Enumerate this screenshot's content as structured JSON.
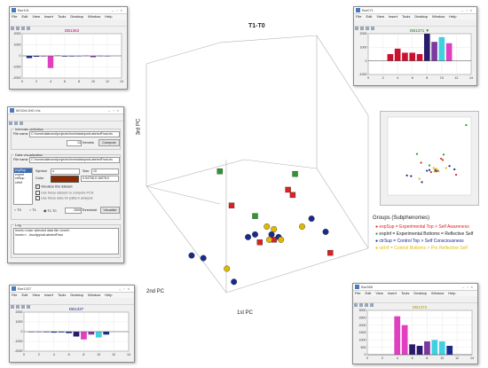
{
  "main_plot": {
    "title": "T1-T0",
    "axis_labels": {
      "z": "3rd PC",
      "y": "2nd PC",
      "x": "1st PC"
    }
  },
  "windows": {
    "top_left": {
      "title": "Bar101",
      "chart_title": "DB1363"
    },
    "top_right": {
      "title": "Bar071",
      "chart_title": "DB1371 ▼"
    },
    "bottom_left": {
      "title": "Bar1337",
      "chart_title": "DB1337"
    },
    "bottom_right": {
      "title": "Bar368",
      "chart_title": "DB1373"
    }
  },
  "menu": [
    "File",
    "Edit",
    "View",
    "Insert",
    "Tools",
    "Desktop",
    "Window",
    "Help"
  ],
  "modeling": {
    "title": "MODeLING.Vis",
    "intervals_panel": "Intervals definition",
    "file_label": "File name",
    "file_value": "C:\\home\\dalmond\\projects\\lmmhdata\\protLabeledFinal.xls",
    "kernels_value": "13",
    "kernels_label": "Kernels",
    "compute_label": "Compute",
    "dataviz_panel": "Data visualization",
    "list_items": [
      "expSup",
      "expInf",
      "ctrSup",
      "ctrInf"
    ],
    "symbol_label": "Symbol",
    "symbol_value": "o",
    "size_label": "Size",
    "size_value": "10",
    "color_label": "Color",
    "color_value": "0.54706,0.16078,0",
    "visualize_dataset": "Visualize this dataset",
    "use_pca": "Use these dataset to compute PCA",
    "use_pattern": "Use these data for pattern analysis",
    "radio_t0": "T0",
    "radio_t1": "T1",
    "radio_t1t0": "T1-T0",
    "threshold_value": "2500",
    "threshold_label": "Threshold",
    "visualize_btn": "Visualize",
    "log_panel": "Log",
    "log_lines": [
      "lmmh>>User selected data file:\\ lmmh\\",
      "lmmh>> ..\\bucfg\\protLabeledFinal"
    ],
    "colors": {
      "swatch": "#8b2900"
    }
  },
  "legend": {
    "title": "Groups (Subphenomes)",
    "items": [
      {
        "label": "expSup = Experimental Top > Self Awareness",
        "color": "#e02020"
      },
      {
        "label": "expInf = Experimental Bottoms = Reflective Self",
        "color": "#2a9a2a"
      },
      {
        "label": "ctrSup = Control Top > Self Consciousness",
        "color": "#1a2a8a"
      },
      {
        "label": "ctrInf = Control Bottoms > Pre Reflective Self",
        "color": "#e0b800"
      }
    ]
  },
  "chart_data": [
    {
      "type": "bar",
      "title": "DB1363",
      "x": [
        1,
        2,
        3,
        4,
        5,
        6,
        7,
        8,
        9,
        10,
        11,
        12
      ],
      "values": [
        -200,
        -80,
        -50,
        -1100,
        40,
        -60,
        -50,
        -40,
        20,
        -120,
        10,
        0
      ],
      "bar_colors": [
        "#1a2a8a",
        "#1a2a8a",
        "#7a3aa0",
        "#e040c0",
        "#7a3aa0",
        "#1a2a8a",
        "#1a2a8a",
        "#1a2a8a",
        "#7a3aa0",
        "#7a3aa0",
        "#1a2a8a",
        "#1a2a8a"
      ],
      "xlim": [
        0,
        14
      ],
      "xticks": [
        0,
        2,
        4,
        6,
        8,
        10,
        12,
        14
      ],
      "ylim": [
        -2000,
        2000
      ],
      "yticks": [
        -2000,
        -1000,
        0,
        1000,
        2000
      ]
    },
    {
      "type": "bar",
      "title": "DB1371",
      "x": [
        3,
        4,
        5,
        6,
        7,
        8,
        9,
        10,
        11
      ],
      "values": [
        500,
        900,
        600,
        600,
        500,
        2000,
        1400,
        1750,
        1300
      ],
      "bar_colors": [
        "#cc1030",
        "#cc1030",
        "#cc1030",
        "#cc1030",
        "#cc1030",
        "#2a1a6a",
        "#7a3aa0",
        "#40d0e0",
        "#e040c0"
      ],
      "xlim": [
        0,
        14
      ],
      "xticks": [
        0,
        2,
        4,
        6,
        8,
        10,
        12,
        14
      ],
      "ylim": [
        -1000,
        2000
      ],
      "yticks": [
        -1000,
        0,
        1000,
        2000
      ]
    },
    {
      "type": "bar",
      "title": "DB1337",
      "x": [
        1,
        2,
        3,
        4,
        5,
        6,
        7,
        8,
        9,
        10,
        11
      ],
      "values": [
        -50,
        -20,
        -60,
        -100,
        -80,
        -150,
        -500,
        -800,
        -300,
        -600,
        -300
      ],
      "bar_colors": [
        "#1a2a8a",
        "#1a2a8a",
        "#1a2a8a",
        "#1a2a8a",
        "#1a2a8a",
        "#1a2a8a",
        "#2a1a6a",
        "#e040c0",
        "#7a3aa0",
        "#40d0e0",
        "#1a2a8a"
      ],
      "xlim": [
        0,
        14
      ],
      "xticks": [
        0,
        2,
        4,
        6,
        8,
        10,
        12,
        14
      ],
      "ylim": [
        -2000,
        2000
      ],
      "yticks": [
        -2000,
        -1000,
        0,
        1000,
        2000
      ]
    },
    {
      "type": "bar",
      "title": "DB1373",
      "x": [
        4,
        5,
        6,
        7,
        8,
        9,
        10,
        11
      ],
      "values": [
        2600,
        2000,
        700,
        600,
        900,
        1000,
        900,
        600
      ],
      "bar_colors": [
        "#e040c0",
        "#e040c0",
        "#2a1a6a",
        "#2a1a6a",
        "#7a3aa0",
        "#40d0e0",
        "#40d0e0",
        "#1a2a8a"
      ],
      "xlim": [
        0,
        14
      ],
      "xticks": [
        0,
        2,
        4,
        6,
        8,
        10,
        12,
        14
      ],
      "ylim": [
        0,
        3000
      ],
      "yticks": [
        0,
        500,
        1000,
        1500,
        2000,
        2500,
        3000
      ]
    },
    {
      "type": "scatter",
      "title": "T1-T0",
      "xlabel": "1st PC",
      "ylabel": "2nd PC",
      "zlabel": "3rd PC",
      "series": [
        {
          "name": "expSup",
          "color": "#e02020",
          "marker": "square",
          "points": [
            [
              0.58,
              0.81
            ],
            [
              0.4,
              0.68
            ],
            [
              0.52,
              0.82
            ],
            [
              0.82,
              0.86
            ],
            [
              0.64,
              0.62
            ],
            [
              0.66,
              0.64
            ]
          ]
        },
        {
          "name": "expInf",
          "color": "#2a9a2a",
          "marker": "square",
          "points": [
            [
              0.94,
              0.12
            ],
            [
              0.35,
              0.55
            ],
            [
              0.67,
              0.56
            ],
            [
              0.5,
              0.72
            ]
          ]
        },
        {
          "name": "ctrSup",
          "color": "#1a2a8a",
          "marker": "circle",
          "points": [
            [
              0.23,
              0.87
            ],
            [
              0.28,
              0.88
            ],
            [
              0.47,
              0.8
            ],
            [
              0.57,
              0.79
            ],
            [
              0.6,
              0.8
            ],
            [
              0.74,
              0.73
            ],
            [
              0.8,
              0.78
            ],
            [
              0.41,
              0.97
            ],
            [
              0.5,
              0.79
            ]
          ]
        },
        {
          "name": "ctrInf",
          "color": "#e0b800",
          "marker": "circle",
          "points": [
            [
              0.38,
              0.92
            ],
            [
              0.55,
              0.76
            ],
            [
              0.58,
              0.77
            ],
            [
              0.61,
              0.81
            ],
            [
              0.7,
              0.76
            ],
            [
              0.56,
              0.81
            ]
          ]
        }
      ]
    }
  ]
}
